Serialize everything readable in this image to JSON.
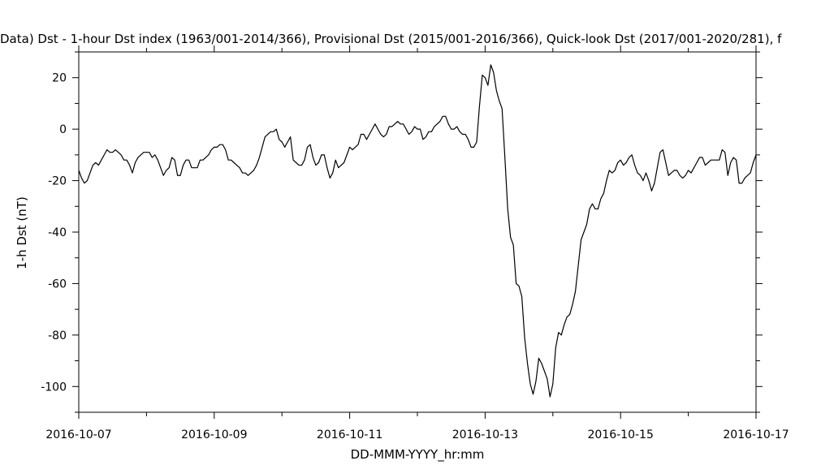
{
  "chart_data": {
    "type": "line",
    "title": "Data)  Dst - 1-hour Dst index (1963/001-2014/366), Provisional Dst (2015/001-2016/366), Quick-look Dst (2017/001-2020/281), f",
    "xlabel": "DD-MMM-YYYY_hr:mm",
    "ylabel": "1-h Dst (nT)",
    "xlim": [
      "2016-10-07",
      "2016-10-17"
    ],
    "ylim": [
      -110,
      30
    ],
    "x_ticks": [
      "2016-10-07",
      "2016-10-09",
      "2016-10-11",
      "2016-10-13",
      "2016-10-15",
      "2016-10-17"
    ],
    "x_minor_ticks": [
      "2016-10-08",
      "2016-10-10",
      "2016-10-12",
      "2016-10-14",
      "2016-10-16"
    ],
    "y_ticks": [
      20,
      0,
      -20,
      -40,
      -60,
      -80,
      -100
    ],
    "y_tick_labels": [
      "20",
      "0",
      "-20",
      "-40",
      "-60",
      "-80",
      "-100"
    ],
    "grid": false,
    "legend": "none",
    "line_color": "#000000",
    "series": [
      {
        "x_start": "2016-10-07T00:00",
        "x_step_hours": 1,
        "values": [
          -16,
          -19,
          -21,
          -20,
          -17,
          -14,
          -13,
          -14,
          -12,
          -10,
          -8,
          -9,
          -9,
          -8,
          -9,
          -10,
          -12,
          -12,
          -14,
          -17,
          -13,
          -11,
          -10,
          -9,
          -9,
          -9,
          -11,
          -10,
          -12,
          -15,
          -18,
          -16,
          -15,
          -11,
          -12,
          -18,
          -18,
          -14,
          -12,
          -12,
          -15,
          -15,
          -15,
          -12,
          -12,
          -11,
          -10,
          -8,
          -7,
          -7,
          -6,
          -6,
          -8,
          -12,
          -12,
          -13,
          -14,
          -15,
          -17,
          -17,
          -18,
          -17,
          -16,
          -14,
          -11,
          -7,
          -3,
          -2,
          -1,
          -1,
          0,
          -4,
          -5,
          -7,
          -5,
          -3,
          -12,
          -13,
          -14,
          -14,
          -12,
          -7,
          -6,
          -11,
          -14,
          -13,
          -10,
          -10,
          -15,
          -19,
          -17,
          -12,
          -15,
          -14,
          -13,
          -10,
          -7,
          -8,
          -7,
          -6,
          -2,
          -2,
          -4,
          -2,
          0,
          2,
          0,
          -2,
          -3,
          -2,
          1,
          1,
          2,
          3,
          2,
          2,
          0,
          -2,
          -1,
          1,
          0,
          0,
          -4,
          -3,
          -1,
          -1,
          1,
          2,
          3,
          5,
          5,
          2,
          0,
          0,
          1,
          -1,
          -2,
          -2,
          -4,
          -7,
          -7,
          -5,
          9,
          21,
          20,
          17,
          25,
          22,
          15,
          11,
          8,
          -11,
          -31,
          -42,
          -45,
          -60,
          -61,
          -65,
          -81,
          -91,
          -99,
          -103,
          -98,
          -89,
          -91,
          -94,
          -97,
          -104,
          -99,
          -85,
          -79,
          -80,
          -76,
          -73,
          -72,
          -68,
          -63,
          -53,
          -43,
          -40,
          -37,
          -31,
          -29,
          -31,
          -31,
          -27,
          -25,
          -20,
          -16,
          -17,
          -16,
          -13,
          -12,
          -14,
          -13,
          -11,
          -10,
          -14,
          -17,
          -18,
          -20,
          -17,
          -20,
          -24,
          -21,
          -15,
          -9,
          -8,
          -13,
          -18,
          -17,
          -16,
          -16,
          -18,
          -19,
          -18,
          -16,
          -17,
          -15,
          -13,
          -11,
          -11,
          -14,
          -13,
          -12,
          -12,
          -12,
          -12,
          -8,
          -9,
          -18,
          -13,
          -11,
          -12,
          -21,
          -21,
          -19,
          -18,
          -17,
          -13,
          -10
        ]
      }
    ]
  }
}
